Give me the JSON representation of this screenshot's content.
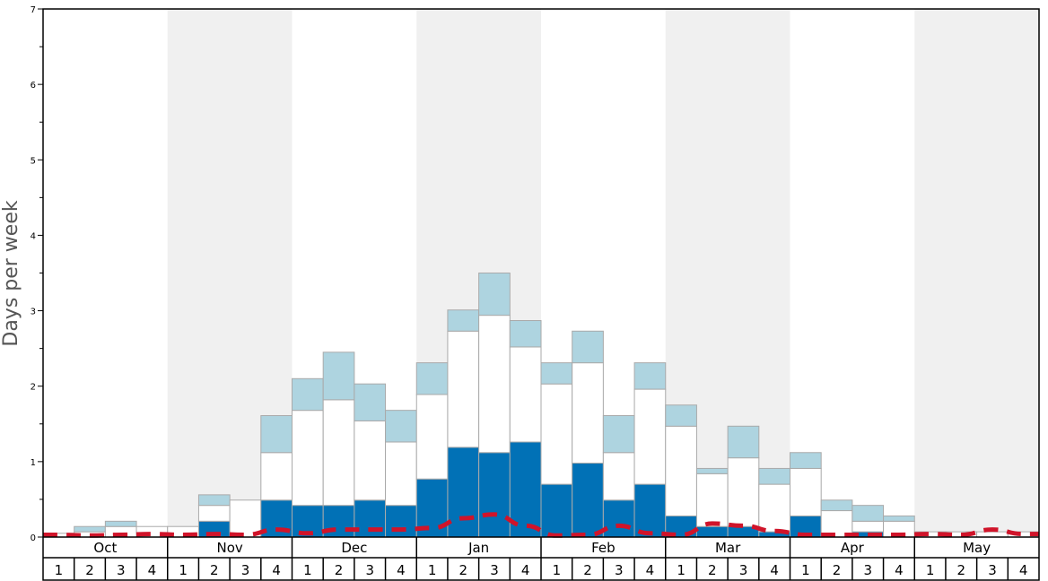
{
  "chart_data": {
    "type": "bar",
    "ylabel": "Days per week",
    "ylim": [
      0,
      7
    ],
    "yticks": [
      "0",
      "1",
      "2",
      "3",
      "4",
      "5",
      "6",
      "7"
    ],
    "months": [
      "Oct",
      "Nov",
      "Dec",
      "Jan",
      "Feb",
      "Mar",
      "Apr",
      "May"
    ],
    "week_labels": [
      "1",
      "2",
      "3",
      "4"
    ],
    "grid": false,
    "colors": {
      "dark": "#0171b6",
      "white": "#ffffff",
      "light": "#aed4e0",
      "line": "#d0142a",
      "band": "#f0f0f0",
      "bar_stroke": "#aaaaaa"
    },
    "series": [
      {
        "values": [
          0,
          0,
          0,
          0,
          0,
          0.21,
          0,
          0.49,
          0.42,
          0.42,
          0.49,
          0.42,
          0.77,
          1.19,
          1.12,
          1.26,
          0.7,
          0.98,
          0.49,
          0.7,
          0.28,
          0.14,
          0.14,
          0.07,
          0.28,
          0,
          0.07,
          0,
          0,
          0,
          0,
          0
        ]
      },
      {
        "values": [
          0.05,
          0.07,
          0.14,
          0.14,
          0.14,
          0.21,
          0.49,
          0.63,
          1.26,
          1.4,
          1.05,
          0.84,
          1.12,
          1.54,
          1.82,
          1.26,
          1.33,
          1.33,
          0.63,
          1.26,
          1.19,
          0.7,
          0.91,
          0.63,
          0.63,
          0.35,
          0.14,
          0.21,
          0.07,
          0.07,
          0.07,
          0.07
        ]
      },
      {
        "values": [
          0,
          0.07,
          0.07,
          0,
          0,
          0.14,
          0,
          0.49,
          0.42,
          0.63,
          0.49,
          0.42,
          0.42,
          0.28,
          0.56,
          0.35,
          0.28,
          0.42,
          0.49,
          0.35,
          0.28,
          0.07,
          0.42,
          0.21,
          0.21,
          0.14,
          0.21,
          0.07,
          0,
          0,
          0,
          0
        ]
      }
    ],
    "line": {
      "values": [
        0.03,
        0.02,
        0.03,
        0.04,
        0.03,
        0.04,
        0.03,
        0.1,
        0.05,
        0.1,
        0.1,
        0.1,
        0.12,
        0.25,
        0.3,
        0.15,
        0.02,
        0.03,
        0.15,
        0.05,
        0.03,
        0.18,
        0.15,
        0.08,
        0.03,
        0.03,
        0.03,
        0.03,
        0.04,
        0.03,
        0.1,
        0.04
      ]
    }
  }
}
